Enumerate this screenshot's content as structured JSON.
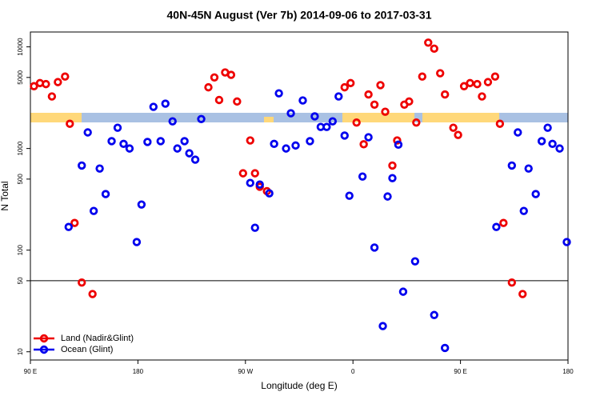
{
  "chart_data": {
    "type": "scatter",
    "title": "40N-45N August (Ver 7b)   2014-09-06 to 2017-03-31",
    "x_label": "Longitude (deg E)",
    "y_label": "N Total",
    "xlim": [
      90,
      540
    ],
    "xticks": [
      {
        "value": 90,
        "label": "90 E"
      },
      {
        "value": 180,
        "label": "180"
      },
      {
        "value": 270,
        "label": "90 W"
      },
      {
        "value": 360,
        "label": "0"
      },
      {
        "value": 450,
        "label": "90 E"
      },
      {
        "value": 540,
        "label": "180"
      }
    ],
    "ylim": [
      8.3,
      14000
    ],
    "log_y": true,
    "yticks": [
      10,
      50,
      100,
      500,
      1000,
      5000,
      10000
    ],
    "hline": 50,
    "legend": "bottom-left",
    "series": [
      {
        "name": "Land (Nadir&Glint)",
        "color": "#ee0000",
        "x": [
          93,
          98,
          103,
          108,
          113,
          119,
          123,
          127,
          133,
          142,
          239,
          244,
          248,
          253,
          258,
          263,
          268,
          274,
          278,
          282,
          288,
          353,
          358,
          363,
          369,
          373,
          378,
          383,
          387,
          393,
          397,
          403,
          407,
          413,
          418,
          423,
          428,
          433,
          437,
          444,
          448,
          453,
          458,
          464,
          468,
          473,
          479,
          483,
          486,
          493,
          502
        ],
        "values": [
          4100,
          4400,
          4300,
          3250,
          4500,
          5100,
          1750,
          185,
          48,
          37,
          4000,
          5000,
          3000,
          5600,
          5300,
          2900,
          570,
          1200,
          570,
          420,
          380,
          4000,
          4400,
          1800,
          1100,
          3400,
          2700,
          4200,
          2300,
          680,
          1200,
          2700,
          2900,
          1800,
          5100,
          11000,
          9600,
          5500,
          3400,
          1600,
          1360,
          4100,
          4400,
          4300,
          3250,
          4500,
          5100,
          1750,
          185,
          48,
          37
        ]
      },
      {
        "name": "Ocean (Glint)",
        "color": "#0000ee",
        "x": [
          122,
          133,
          138,
          143,
          148,
          153,
          158,
          163,
          168,
          173,
          179,
          183,
          188,
          193,
          199,
          203,
          209,
          213,
          219,
          223,
          228,
          233,
          274,
          278,
          282,
          290,
          294,
          298,
          304,
          308,
          312,
          318,
          324,
          328,
          333,
          338,
          343,
          348,
          353,
          357,
          368,
          373,
          378,
          385,
          389,
          393,
          398,
          402,
          412,
          428,
          437,
          480,
          493,
          498,
          503,
          507,
          513,
          518,
          523,
          527,
          533,
          539
        ],
        "values": [
          169,
          680,
          1440,
          243,
          635,
          356,
          1180,
          1600,
          1110,
          1000,
          120,
          281,
          1160,
          2570,
          1180,
          2760,
          1850,
          1000,
          1180,
          897,
          776,
          1950,
          458,
          166,
          442,
          362,
          1110,
          3490,
          1000,
          2220,
          1070,
          2970,
          1180,
          2070,
          1630,
          1630,
          1850,
          3250,
          1340,
          343,
          530,
          1290,
          106,
          17.9,
          337,
          511,
          1090,
          39,
          77.6,
          23,
          10.9,
          169,
          680,
          1440,
          243,
          635,
          356,
          1180,
          1600,
          1110,
          1000,
          120
        ]
      }
    ]
  }
}
